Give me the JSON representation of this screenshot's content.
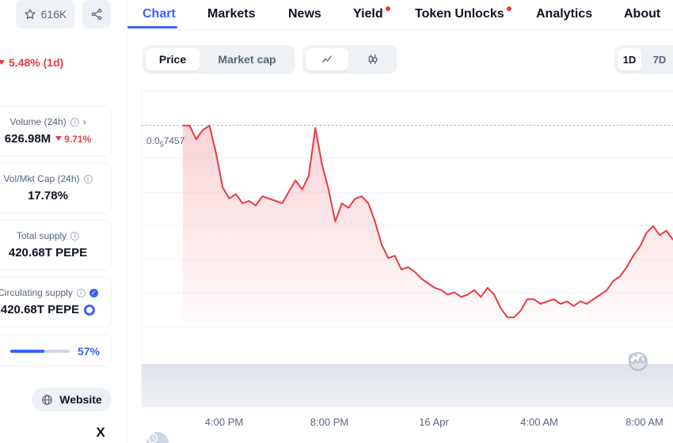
{
  "sidebar": {
    "watchlist_count": "616K",
    "change_1d": "5.48% (1d)",
    "stats": {
      "volume": {
        "label": "Volume (24h)",
        "value": "626.98M",
        "change": "9.71%"
      },
      "vol_mkt_cap": {
        "label": "Vol/Mkt Cap (24h)",
        "value": "17.78%"
      },
      "total_supply": {
        "label": "Total supply",
        "value": "420.68T PEPE"
      },
      "circulating_supply": {
        "label": "Circulating supply",
        "value": "420.68T PEPE",
        "progress_pct": 57,
        "progress_label": "57%"
      }
    },
    "website_label": "Website",
    "x_label": "X"
  },
  "tabs": [
    {
      "label": "Chart",
      "active": true
    },
    {
      "label": "Markets"
    },
    {
      "label": "News"
    },
    {
      "label": "Yield",
      "dot": true
    },
    {
      "label": "Token Unlocks",
      "dot": true
    },
    {
      "label": "Analytics"
    },
    {
      "label": "About"
    }
  ],
  "controls": {
    "metric": [
      "Price",
      "Market cap"
    ],
    "metric_selected": "Price",
    "ranges": [
      "1D",
      "7D"
    ],
    "range_selected": "1D"
  },
  "chart_data": {
    "type": "area",
    "price_label_prefix": "0.0",
    "price_label_sub": "5",
    "price_label_suffix": "7457",
    "x_ticks": [
      "4:00 PM",
      "8:00 PM",
      "16 Apr",
      "4:00 AM",
      "8:00 AM"
    ],
    "series_color": "#ea3943",
    "y": [
      0.72,
      0.72,
      0.66,
      0.7,
      0.72,
      0.6,
      0.45,
      0.4,
      0.42,
      0.38,
      0.39,
      0.37,
      0.41,
      0.4,
      0.39,
      0.38,
      0.43,
      0.48,
      0.44,
      0.5,
      0.71,
      0.55,
      0.44,
      0.3,
      0.38,
      0.36,
      0.4,
      0.41,
      0.38,
      0.3,
      0.2,
      0.14,
      0.15,
      0.09,
      0.1,
      0.08,
      0.05,
      0.03,
      0.01,
      0.0,
      -0.02,
      -0.01,
      -0.03,
      -0.02,
      0.0,
      -0.03,
      0.01,
      -0.02,
      -0.08,
      -0.12,
      -0.12,
      -0.09,
      -0.04,
      -0.04,
      -0.06,
      -0.05,
      -0.04,
      -0.06,
      -0.05,
      -0.07,
      -0.05,
      -0.06,
      -0.04,
      -0.02,
      0.0,
      0.04,
      0.06,
      0.1,
      0.15,
      0.19,
      0.25,
      0.28,
      0.24,
      0.26,
      0.22
    ],
    "watermark": "Co"
  }
}
